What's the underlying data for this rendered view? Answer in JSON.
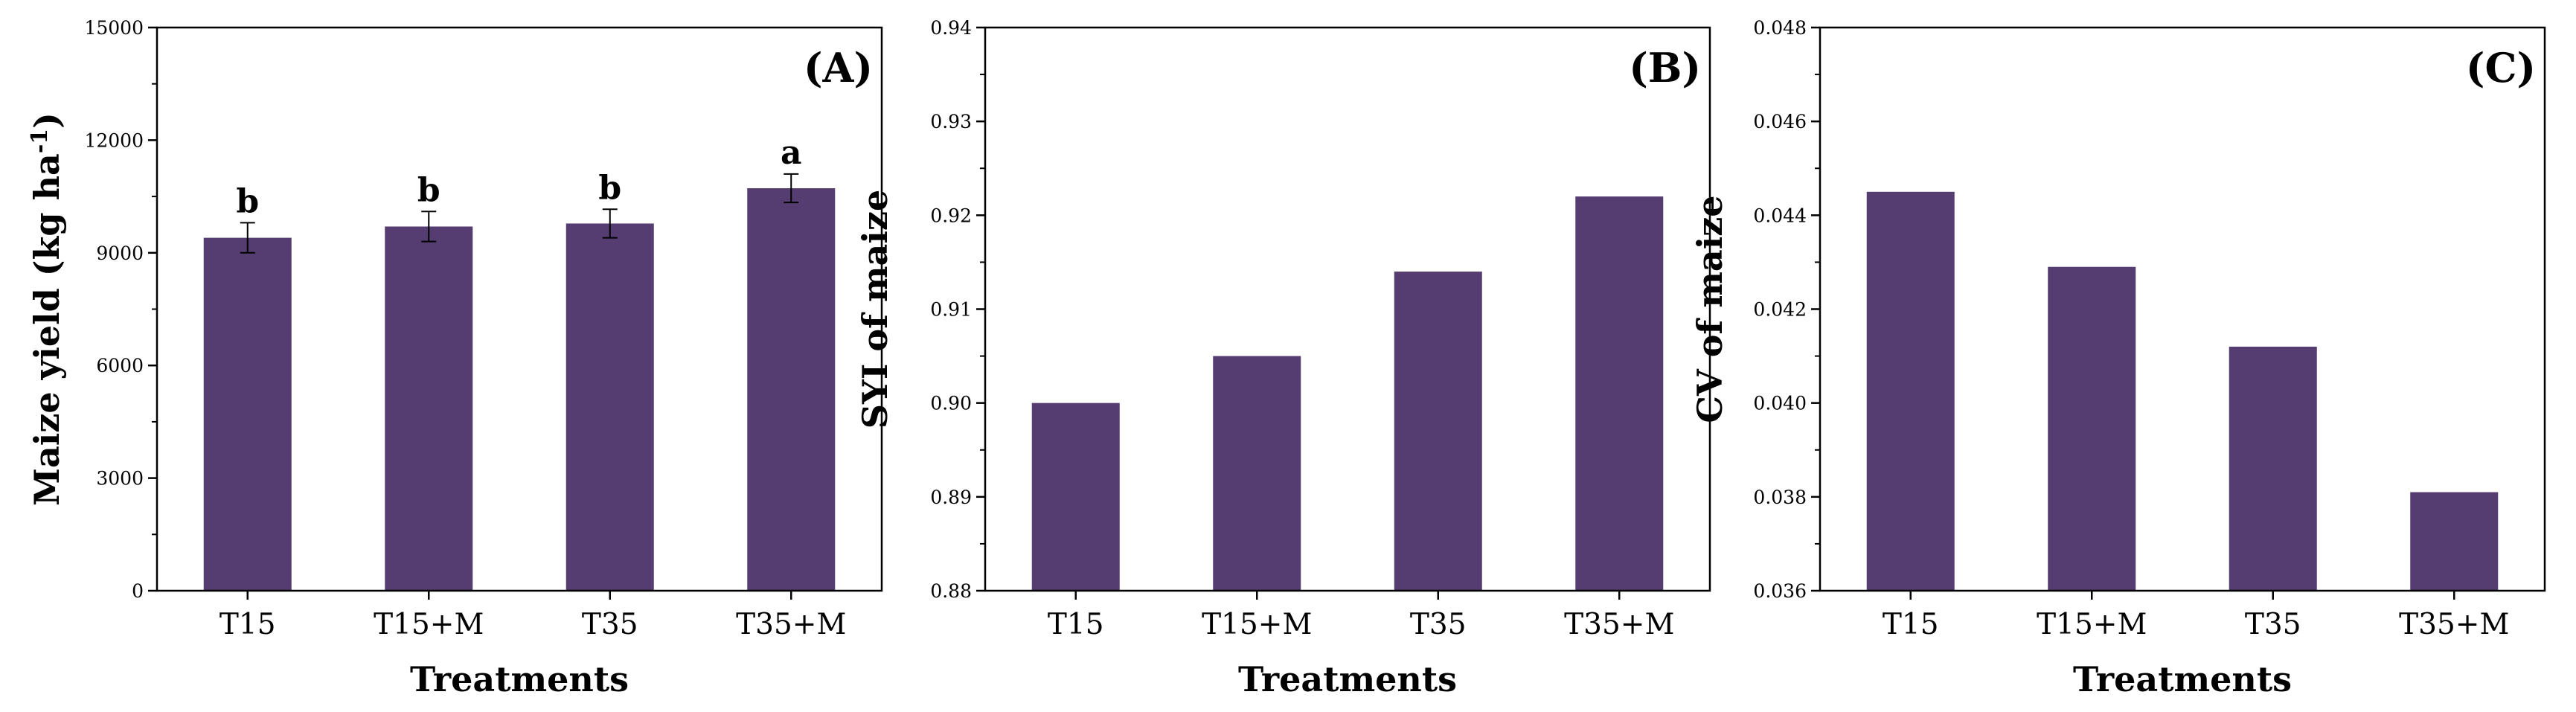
{
  "colors": {
    "bar": "#553c71",
    "axis": "#000000"
  },
  "chart_data": [
    {
      "type": "bar",
      "panel_label": "(A)",
      "xlabel": "Treatments",
      "ylabel_main": "Maize yield (kg ha",
      "ylabel_sup": "-1",
      "ylabel_end": ")",
      "categories": [
        "T15",
        "T15+M",
        "T35",
        "T35+M"
      ],
      "values": [
        9400,
        9700,
        9780,
        10720
      ],
      "errors": [
        400,
        400,
        380,
        380
      ],
      "significance": [
        "b",
        "b",
        "b",
        "a"
      ],
      "ylim": [
        0,
        15000
      ],
      "yticks": [
        0,
        3000,
        6000,
        9000,
        12000,
        15000
      ],
      "ytick_labels": [
        "0",
        "3000",
        "6000",
        "9000",
        "12000",
        "15000"
      ]
    },
    {
      "type": "bar",
      "panel_label": "(B)",
      "xlabel": "Treatments",
      "ylabel_main": "SYI of maize",
      "categories": [
        "T15",
        "T15+M",
        "T35",
        "T35+M"
      ],
      "values": [
        0.9,
        0.905,
        0.914,
        0.922
      ],
      "ylim": [
        0.88,
        0.94
      ],
      "yticks": [
        0.88,
        0.89,
        0.9,
        0.91,
        0.92,
        0.93,
        0.94
      ],
      "ytick_labels": [
        "0.88",
        "0.89",
        "0.90",
        "0.91",
        "0.92",
        "0.93",
        "0.94"
      ]
    },
    {
      "type": "bar",
      "panel_label": "(C)",
      "xlabel": "Treatments",
      "ylabel_main": "CV of maize",
      "categories": [
        "T15",
        "T15+M",
        "T35",
        "T35+M"
      ],
      "values": [
        0.0445,
        0.0429,
        0.0412,
        0.0381
      ],
      "ylim": [
        0.036,
        0.048
      ],
      "yticks": [
        0.036,
        0.038,
        0.04,
        0.042,
        0.044,
        0.046,
        0.048
      ],
      "ytick_labels": [
        "0.036",
        "0.038",
        "0.040",
        "0.042",
        "0.044",
        "0.046",
        "0.048"
      ]
    }
  ]
}
